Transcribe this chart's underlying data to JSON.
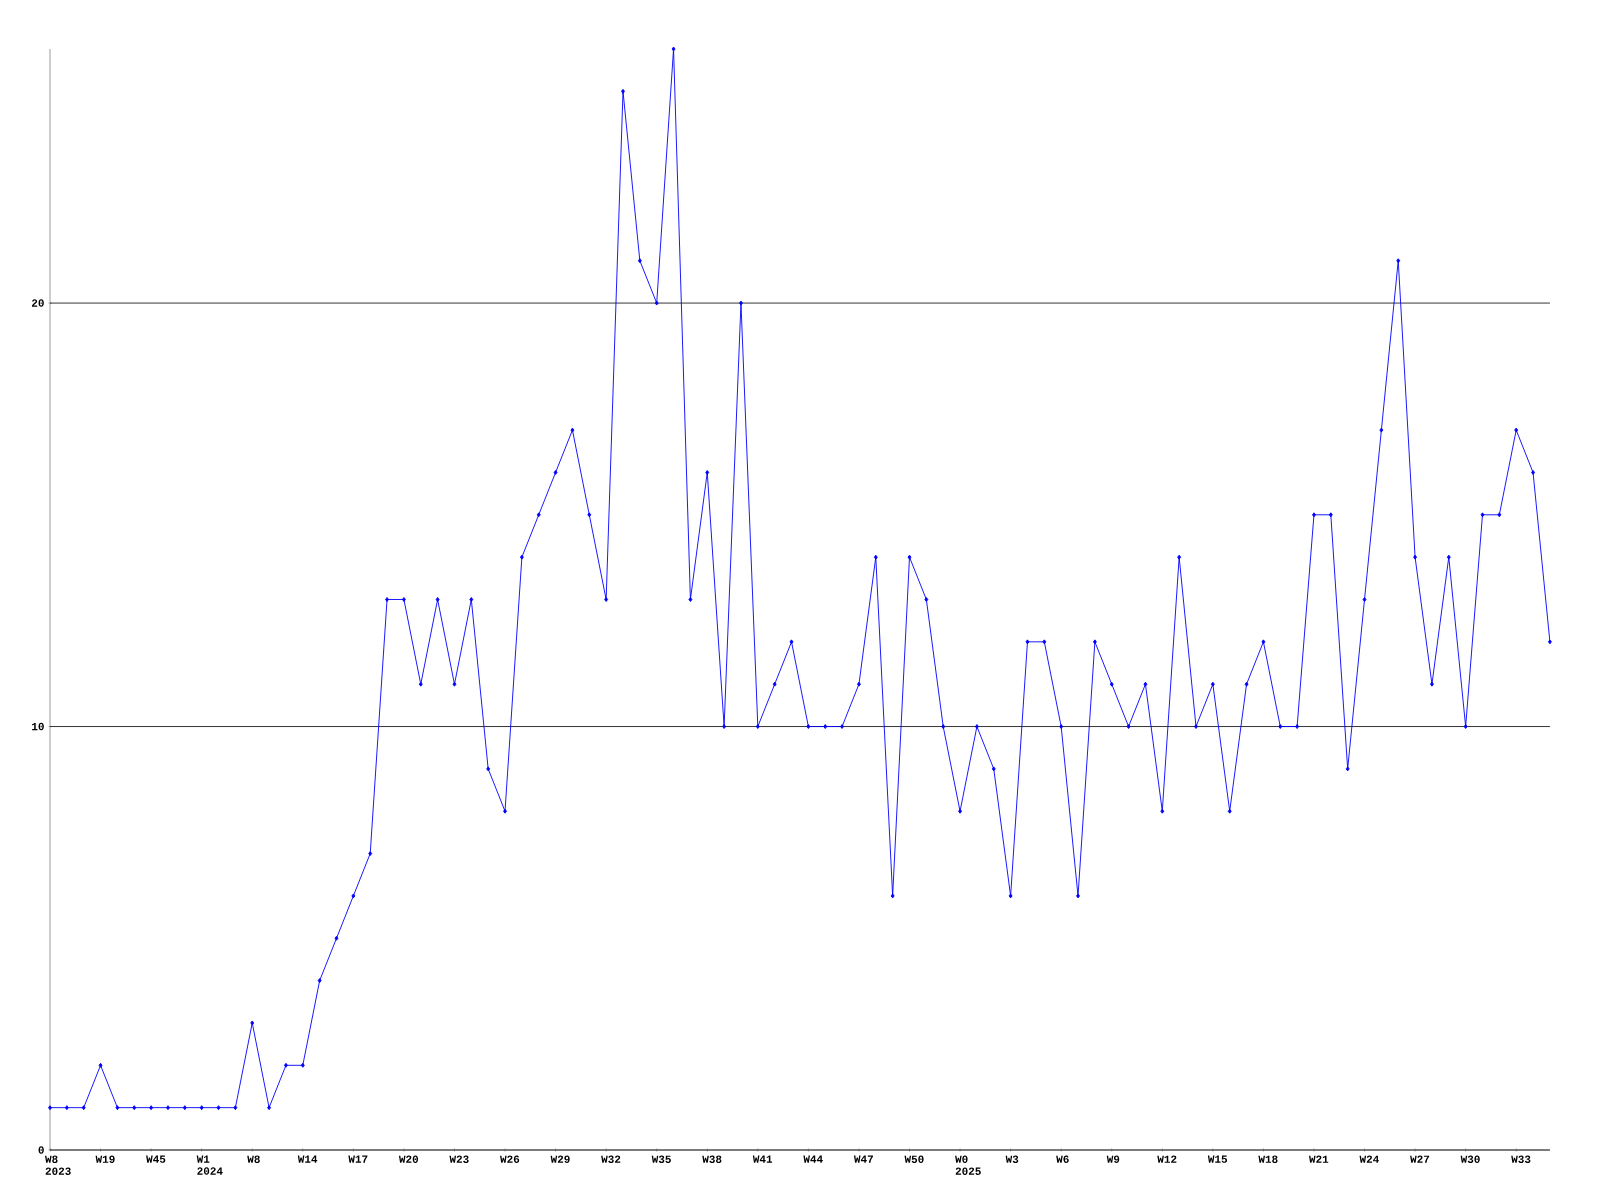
{
  "chart_data": {
    "type": "line",
    "categories": [
      "W8 2023",
      null,
      null,
      "W19",
      null,
      null,
      "W45",
      null,
      null,
      "W1 2024",
      null,
      null,
      "W8",
      null,
      null,
      "W14",
      null,
      null,
      "W17",
      null,
      null,
      "W20",
      null,
      null,
      "W23",
      null,
      null,
      "W26",
      null,
      null,
      "W29",
      null,
      null,
      "W32",
      null,
      null,
      "W35",
      null,
      null,
      "W38",
      null,
      null,
      "W41",
      null,
      null,
      "W44",
      null,
      null,
      "W47",
      null,
      null,
      "W50",
      null,
      null,
      "W0 2025",
      null,
      null,
      "W3",
      null,
      null,
      "W6",
      null,
      null,
      "W9",
      null,
      null,
      "W12",
      null,
      null,
      "W15",
      null,
      null,
      "W18",
      null,
      null,
      "W21",
      null,
      null,
      "W24",
      null,
      null,
      "W27",
      null,
      null,
      "W30",
      null,
      null,
      "W33",
      null,
      null
    ],
    "values": [
      1,
      1,
      1,
      2,
      1,
      1,
      1,
      1,
      1,
      1,
      1,
      1,
      3,
      1,
      2,
      2,
      4,
      5,
      6,
      7,
      13,
      13,
      11,
      13,
      11,
      13,
      9,
      8,
      14,
      15,
      16,
      17,
      15,
      13,
      25,
      21,
      20,
      26,
      13,
      16,
      10,
      20,
      10,
      11,
      12,
      10,
      10,
      10,
      11,
      14,
      6,
      14,
      13,
      10,
      8,
      10,
      9,
      6,
      12,
      12,
      10,
      6,
      12,
      11,
      10,
      11,
      8,
      14,
      10,
      11,
      8,
      11,
      12,
      10,
      10,
      15,
      15,
      9,
      13,
      17,
      21,
      14,
      11,
      14,
      10,
      15,
      15,
      17,
      16,
      12
    ],
    "color": "#0000ff",
    "ylim": [
      0,
      26
    ],
    "yticks": [
      0,
      10,
      20
    ],
    "grid": "y",
    "marker": "diamond",
    "line_style": "solid"
  }
}
